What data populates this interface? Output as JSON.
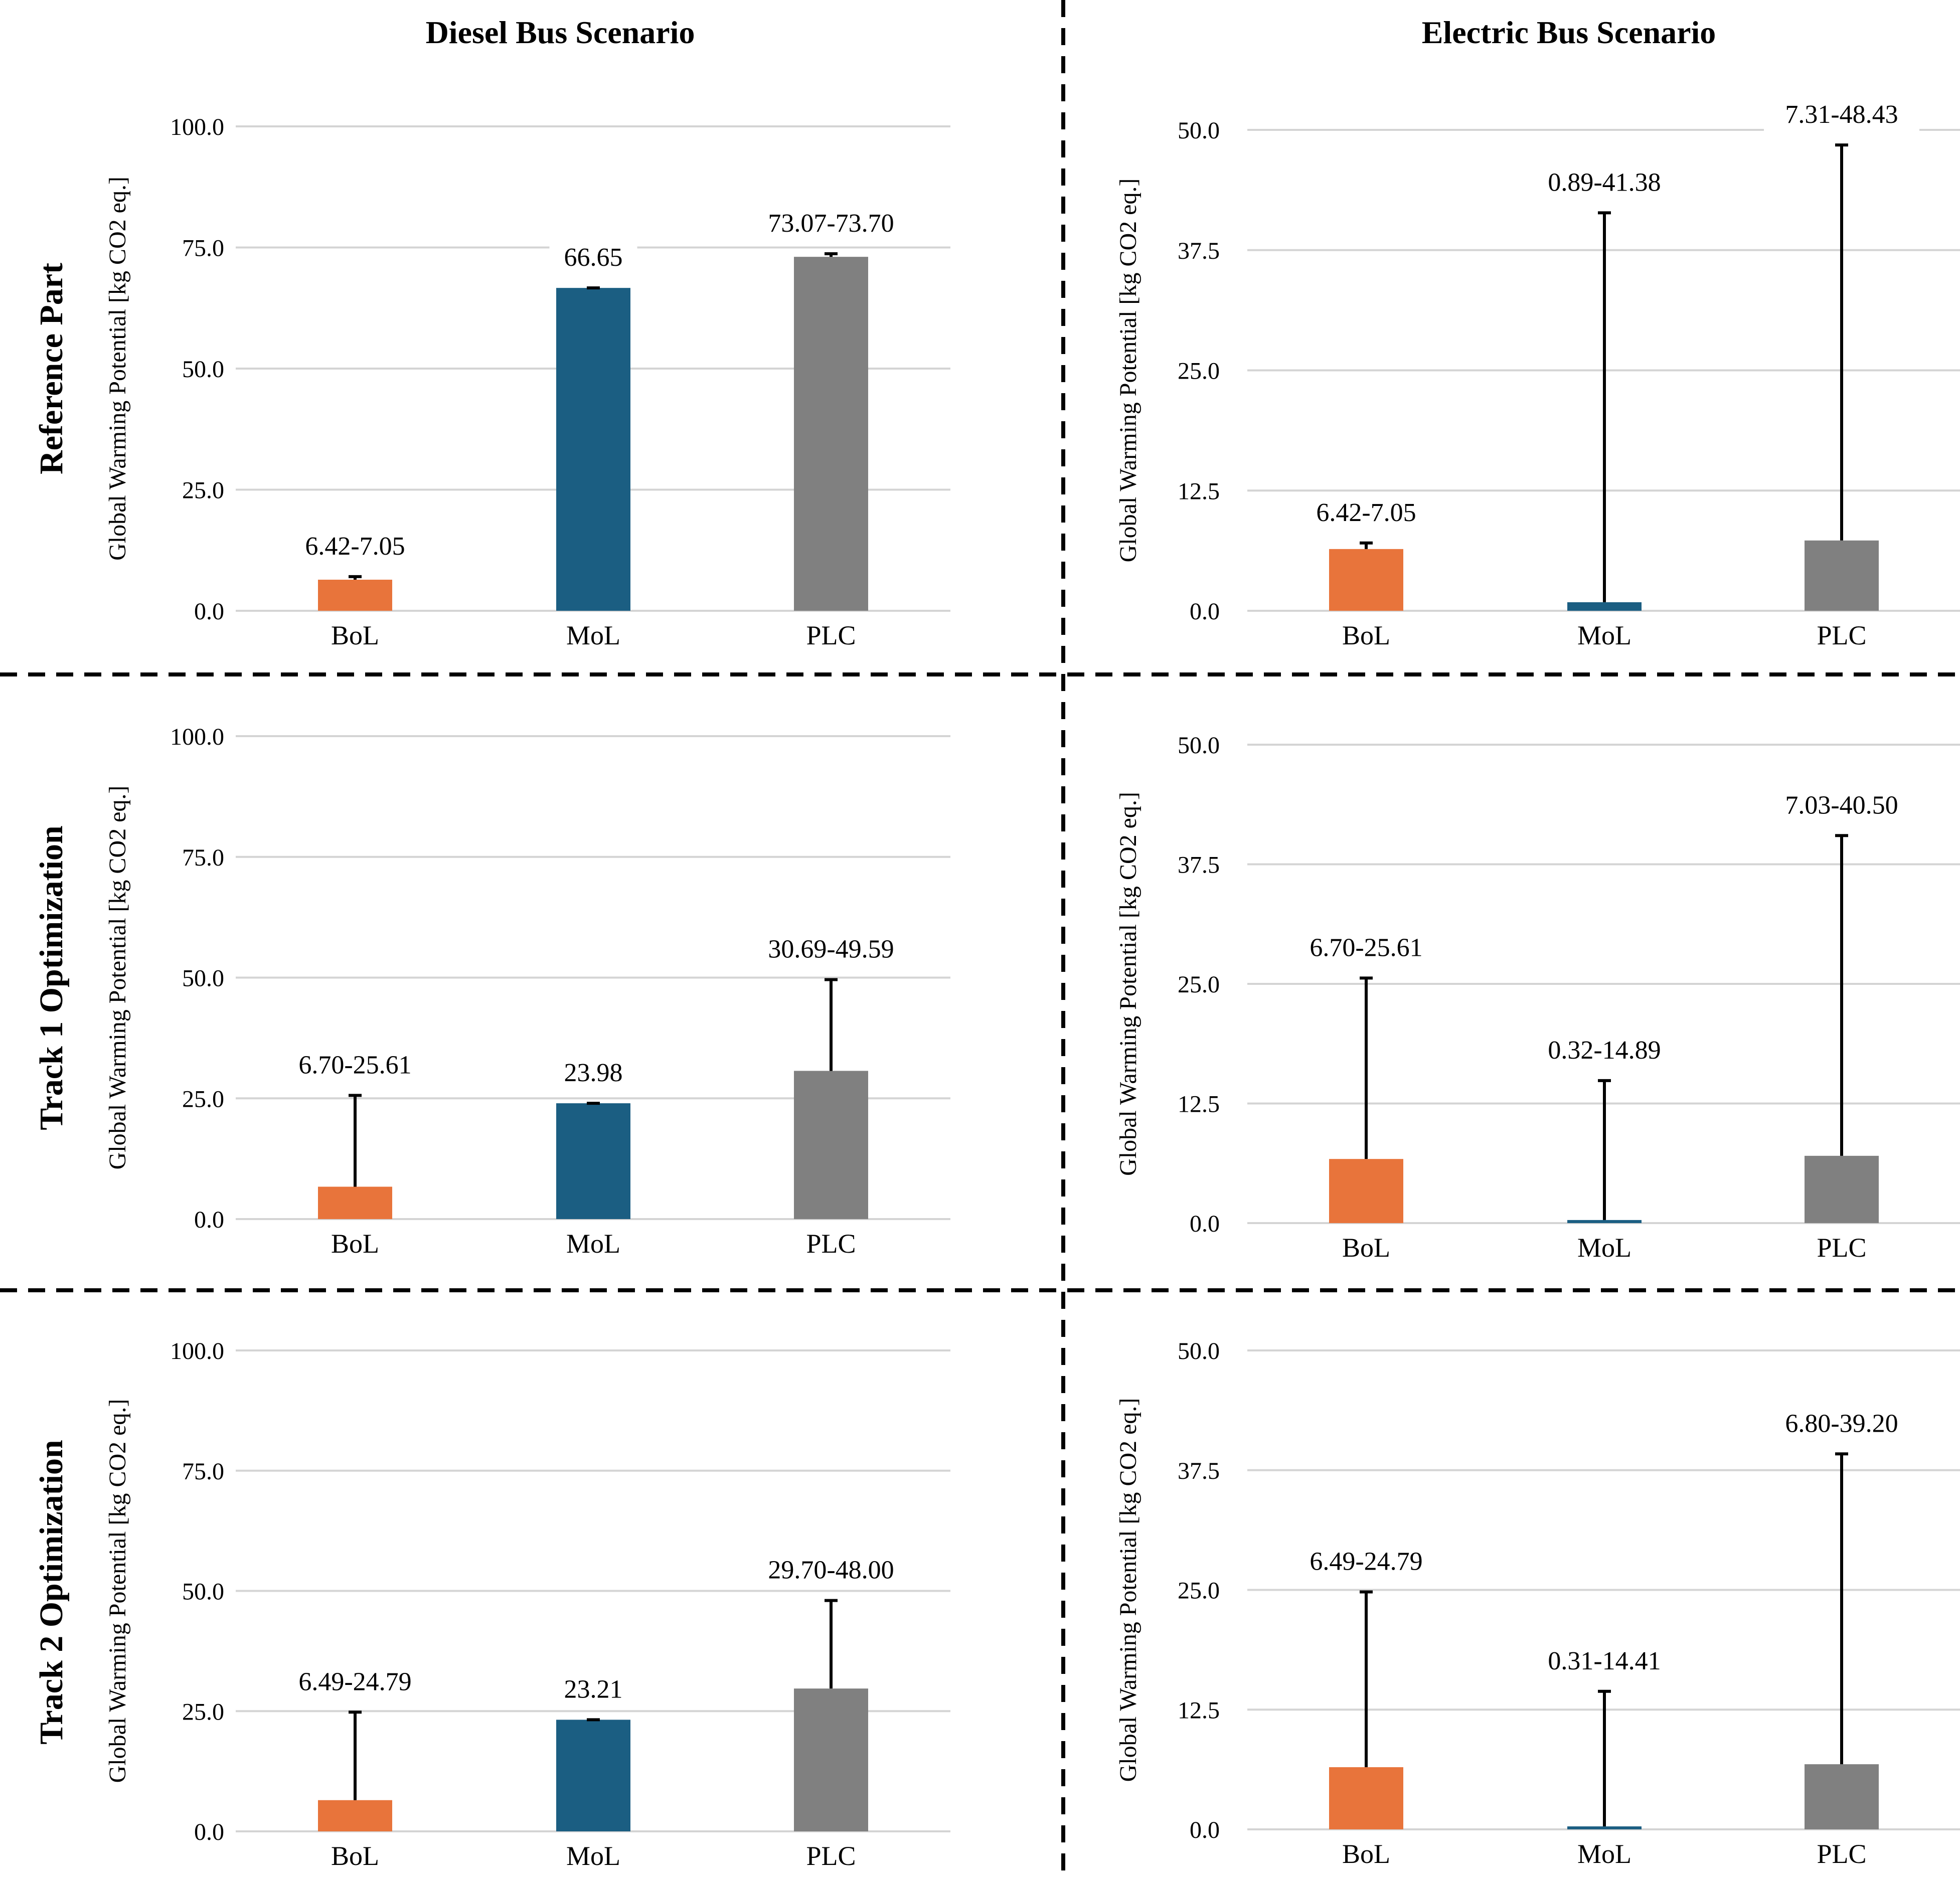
{
  "column_titles": [
    "Diesel Bus Scenario",
    "Electric Bus Scenario"
  ],
  "row_titles": [
    "Reference Part",
    "Track 1 Optimization",
    "Track 2 Optimization"
  ],
  "colors": {
    "BoL": "#e8743b",
    "MoL": "#1b5e82",
    "PLC": "#808080"
  },
  "chart_data": [
    {
      "type": "bar",
      "panel": "Diesel Bus Scenario / Reference Part",
      "categories": [
        "BoL",
        "MoL",
        "PLC"
      ],
      "values": [
        6.42,
        66.65,
        73.07
      ],
      "error_high": [
        7.05,
        66.65,
        73.7
      ],
      "data_labels": [
        "6.42-7.05",
        "66.65",
        "73.07-73.70"
      ],
      "ylabel": "Global Warming Potential [kg CO2 eq.]",
      "ylim": [
        0,
        100
      ],
      "yticks": [
        "0.0",
        "25.0",
        "50.0",
        "75.0",
        "100.0"
      ],
      "grid": true
    },
    {
      "type": "bar",
      "panel": "Electric Bus Scenario / Reference Part",
      "categories": [
        "BoL",
        "MoL",
        "PLC"
      ],
      "values": [
        6.42,
        0.89,
        7.31
      ],
      "error_high": [
        7.05,
        41.38,
        48.43
      ],
      "data_labels": [
        "6.42-7.05",
        "0.89-41.38",
        "7.31-48.43"
      ],
      "ylabel": "Global Warming Potential [kg CO2 eq.]",
      "ylim": [
        0,
        50
      ],
      "yticks": [
        "0.0",
        "12.5",
        "25.0",
        "37.5",
        "50.0"
      ],
      "grid": true
    },
    {
      "type": "bar",
      "panel": "Diesel Bus Scenario / Track 1 Optimization",
      "categories": [
        "BoL",
        "MoL",
        "PLC"
      ],
      "values": [
        6.7,
        23.98,
        30.69
      ],
      "error_high": [
        25.61,
        23.98,
        49.59
      ],
      "data_labels": [
        "6.70-25.61",
        "23.98",
        "30.69-49.59"
      ],
      "ylabel": "Global Warming Potential [kg CO2 eq.]",
      "ylim": [
        0,
        100
      ],
      "yticks": [
        "0.0",
        "25.0",
        "50.0",
        "75.0",
        "100.0"
      ],
      "grid": true
    },
    {
      "type": "bar",
      "panel": "Electric Bus Scenario / Track 1 Optimization",
      "categories": [
        "BoL",
        "MoL",
        "PLC"
      ],
      "values": [
        6.7,
        0.32,
        7.03
      ],
      "error_high": [
        25.61,
        14.89,
        40.5
      ],
      "data_labels": [
        "6.70-25.61",
        "0.32-14.89",
        "7.03-40.50"
      ],
      "ylabel": "Global Warming Potential [kg CO2 eq.]",
      "ylim": [
        0,
        50
      ],
      "yticks": [
        "0.0",
        "12.5",
        "25.0",
        "37.5",
        "50.0"
      ],
      "grid": true
    },
    {
      "type": "bar",
      "panel": "Diesel Bus Scenario / Track 2 Optimization",
      "categories": [
        "BoL",
        "MoL",
        "PLC"
      ],
      "values": [
        6.49,
        23.21,
        29.7
      ],
      "error_high": [
        24.79,
        23.21,
        48.0
      ],
      "data_labels": [
        "6.49-24.79",
        "23.21",
        "29.70-48.00"
      ],
      "ylabel": "Global Warming Potential [kg CO2 eq.]",
      "ylim": [
        0,
        100
      ],
      "yticks": [
        "0.0",
        "25.0",
        "50.0",
        "75.0",
        "100.0"
      ],
      "grid": true
    },
    {
      "type": "bar",
      "panel": "Electric Bus Scenario / Track 2 Optimization",
      "categories": [
        "BoL",
        "MoL",
        "PLC"
      ],
      "values": [
        6.49,
        0.31,
        6.8
      ],
      "error_high": [
        24.79,
        14.41,
        39.2
      ],
      "data_labels": [
        "6.49-24.79",
        "0.31-14.41",
        "6.80-39.20"
      ],
      "ylabel": "Global Warming Potential [kg CO2 eq.]",
      "ylim": [
        0,
        50
      ],
      "yticks": [
        "0.0",
        "12.5",
        "25.0",
        "37.5",
        "50.0"
      ],
      "grid": true
    }
  ]
}
